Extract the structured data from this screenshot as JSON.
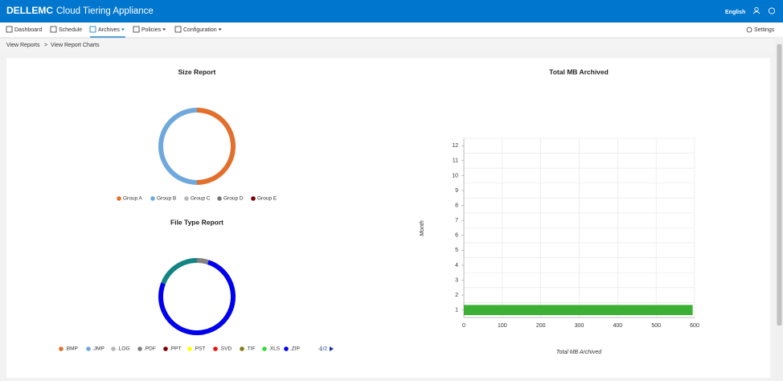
{
  "header": {
    "brand": "DELLEMC",
    "title": "Cloud Tiering Appliance",
    "language": "English"
  },
  "nav": {
    "items": [
      "Dashboard",
      "Schedule",
      "Archives",
      "Policies",
      "Configuration"
    ],
    "settings": "Settings"
  },
  "breadcrumb": {
    "items": [
      "View Reports",
      "View Report Charts"
    ],
    "separator": ">"
  },
  "chart_data": [
    {
      "type": "pie",
      "title": "Size Report",
      "categories": [
        "Group A",
        "Group B",
        "Group C",
        "Group D",
        "Group E"
      ],
      "values": [
        50,
        50,
        0,
        0,
        0
      ],
      "colors": [
        "#e36f2c",
        "#6fa8dc",
        "#b7b7b7",
        "#777777",
        "#7f0000"
      ]
    },
    {
      "type": "pie",
      "title": "File Type Report",
      "categories": [
        ".BMP",
        ".JMP",
        ".LOG",
        ".PDF",
        ".PPT",
        ".PST",
        ".SVD",
        ".TIF",
        ".XLS",
        ".ZIP",
        null
      ],
      "values": [
        0,
        0,
        0,
        5,
        0,
        0,
        0,
        0,
        0,
        76,
        19
      ],
      "colors": [
        "#e36f2c",
        "#6fa8dc",
        "#b7b7b7",
        "#808080",
        "#7f0000",
        "#ffff00",
        "#ee1111",
        "#8a7a10",
        "#33dd33",
        "#0000ee",
        "#138484"
      ],
      "legend_page": "1/2"
    },
    {
      "type": "bar",
      "title": "Total MB Archived",
      "categories": [
        "1",
        "2",
        "3",
        "4",
        "5",
        "6",
        "7",
        "8",
        "9",
        "10",
        "11",
        "12"
      ],
      "values": [
        595,
        0,
        0,
        0,
        0,
        0,
        0,
        0,
        0,
        0,
        0,
        0
      ],
      "color": "#3cb034",
      "xlim": [
        0,
        600
      ],
      "xticks": [
        0,
        100,
        200,
        300,
        400,
        500,
        600
      ],
      "xlabel": "Total MB Archived",
      "ylabel": "Month",
      "grid": true
    }
  ]
}
